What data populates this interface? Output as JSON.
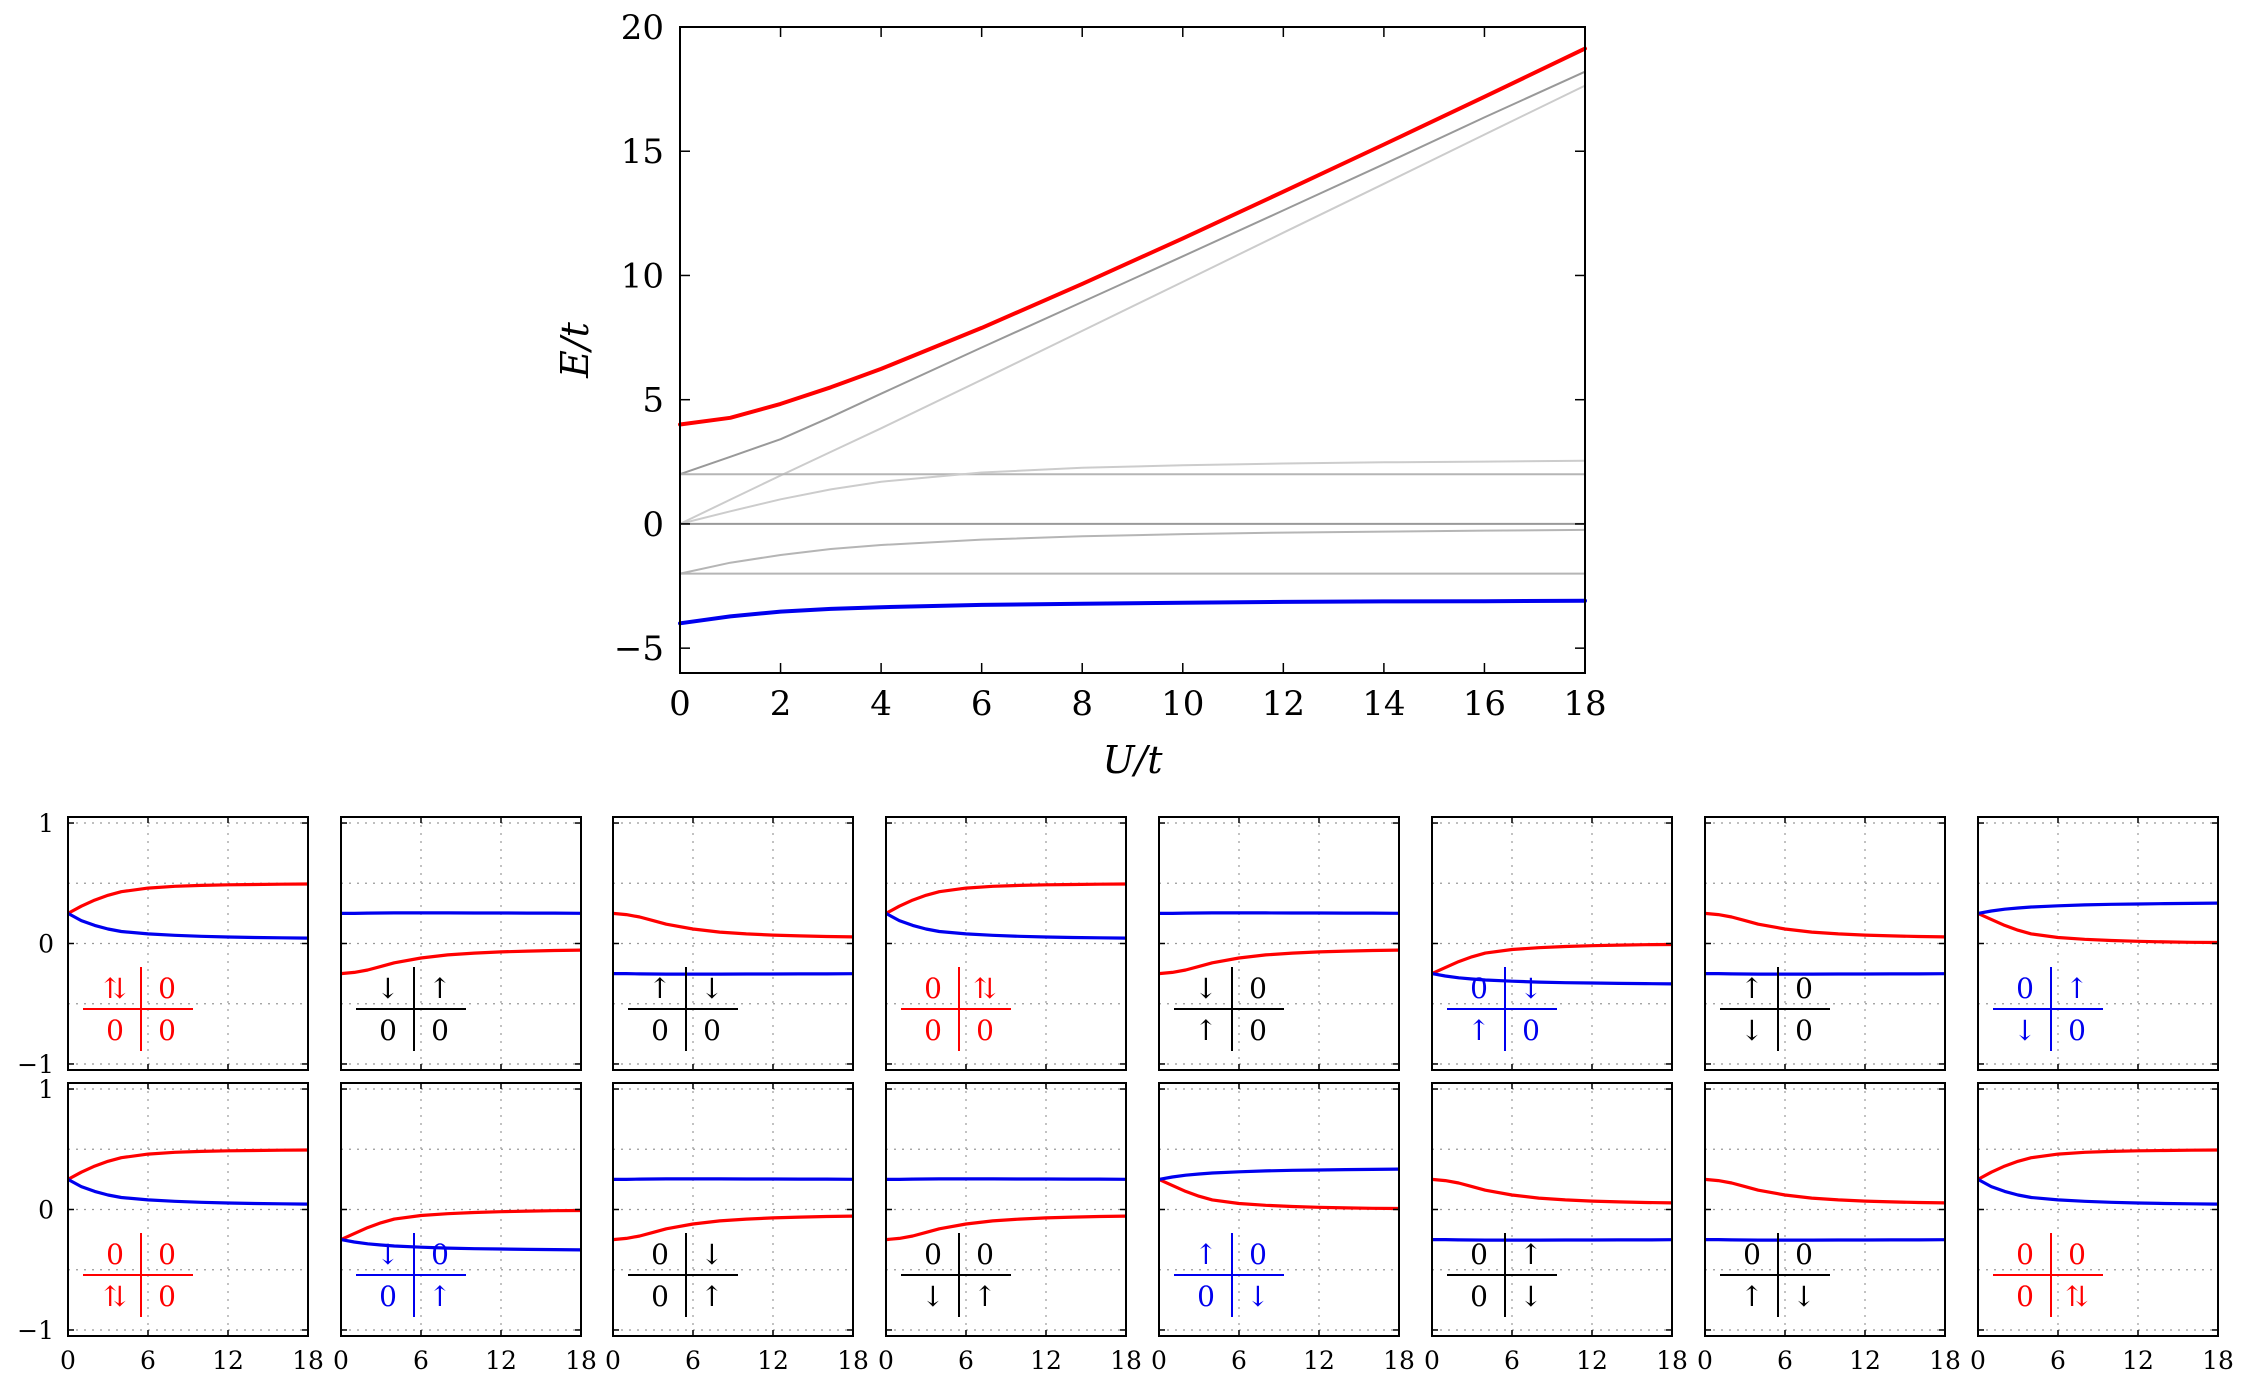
{
  "colors": {
    "red": "#ff0000",
    "blue": "#0000ee",
    "black": "#000000",
    "gray_dark": "#999999",
    "gray_mid": "#b5b5b5",
    "gray_light": "#cccccc"
  },
  "chart_data": [
    {
      "type": "line",
      "xlabel": "U/t",
      "ylabel": "E/t",
      "xlim": [
        0,
        18
      ],
      "ylim": [
        -6,
        20
      ],
      "xticks": [
        0,
        2,
        4,
        6,
        8,
        10,
        12,
        14,
        16,
        18
      ],
      "yticks": [
        -5,
        0,
        5,
        10,
        15,
        20
      ],
      "ytick_labels": [
        "−5",
        "0",
        "5",
        "10",
        "15",
        "20"
      ],
      "grid": false,
      "x": [
        0,
        1,
        2,
        3,
        4,
        6,
        8,
        10,
        12,
        14,
        16,
        18
      ],
      "series": [
        {
          "color": "red",
          "width": 4,
          "values": [
            4.0,
            4.27,
            4.83,
            5.5,
            6.24,
            7.89,
            9.66,
            11.49,
            13.37,
            15.27,
            17.19,
            19.13
          ]
        },
        {
          "color": "gray_dark",
          "width": 2,
          "values": [
            2.0,
            2.7,
            3.41,
            4.3,
            5.24,
            7.1,
            8.93,
            10.77,
            12.62,
            14.48,
            16.36,
            18.2
          ]
        },
        {
          "color": "gray_light",
          "width": 2,
          "values": [
            0.0,
            0.98,
            1.95,
            2.9,
            3.85,
            5.8,
            7.77,
            9.74,
            11.72,
            13.69,
            15.67,
            17.64
          ]
        },
        {
          "color": "gray_mid",
          "width": 2,
          "values": [
            2.0,
            2.0,
            2.0,
            2.0,
            2.0,
            2.0,
            2.0,
            2.0,
            2.0,
            2.0,
            2.0,
            2.0
          ]
        },
        {
          "color": "gray_light",
          "width": 2,
          "values": [
            0.0,
            0.51,
            0.99,
            1.39,
            1.7,
            2.07,
            2.26,
            2.36,
            2.43,
            2.48,
            2.51,
            2.54
          ]
        },
        {
          "color": "gray_dark",
          "width": 2,
          "values": [
            0.0,
            0.0,
            0.0,
            0.0,
            0.0,
            0.0,
            0.0,
            0.0,
            0.0,
            0.0,
            0.0,
            0.0
          ]
        },
        {
          "color": "gray_mid",
          "width": 2,
          "values": [
            -2.0,
            -1.56,
            -1.25,
            -1.01,
            -0.85,
            -0.63,
            -0.5,
            -0.41,
            -0.35,
            -0.31,
            -0.27,
            -0.24
          ]
        },
        {
          "color": "gray_mid",
          "width": 2,
          "values": [
            -2.0,
            -2.0,
            -2.0,
            -2.0,
            -2.0,
            -2.0,
            -2.0,
            -2.0,
            -2.0,
            -2.0,
            -2.0,
            -2.0
          ]
        },
        {
          "color": "blue",
          "width": 4,
          "values": [
            -4.0,
            -3.72,
            -3.53,
            -3.42,
            -3.35,
            -3.26,
            -3.21,
            -3.17,
            -3.14,
            -3.12,
            -3.11,
            -3.09
          ]
        }
      ]
    },
    {
      "type": "line",
      "grid": true,
      "xlim": [
        0,
        18
      ],
      "ylim": [
        -1.05,
        1.05
      ],
      "xticks": [
        0,
        6,
        12,
        18
      ],
      "xtick_labels": [
        "0",
        "6",
        "12",
        "18"
      ],
      "yticks": [
        -1,
        0,
        1
      ],
      "ytick_labels": [
        "−1",
        "0",
        "1"
      ],
      "x": [
        0,
        1,
        2,
        3,
        4,
        6,
        8,
        10,
        12,
        14,
        16,
        18
      ],
      "shapes": {
        "up": [
          0.25,
          0.31,
          0.36,
          0.4,
          0.43,
          0.46,
          0.475,
          0.482,
          0.487,
          0.49,
          0.492,
          0.494
        ],
        "dn": [
          0.25,
          0.19,
          0.15,
          0.12,
          0.1,
          0.08,
          0.068,
          0.06,
          0.054,
          0.05,
          0.047,
          0.045
        ],
        "dec": [
          0.25,
          0.24,
          0.22,
          0.19,
          0.16,
          0.12,
          0.095,
          0.08,
          0.07,
          0.063,
          0.058,
          0.055
        ],
        "inc": [
          -0.25,
          -0.24,
          -0.22,
          -0.19,
          -0.16,
          -0.12,
          -0.095,
          -0.08,
          -0.07,
          -0.063,
          -0.058,
          -0.055
        ],
        "flatPos": [
          0.25,
          0.25,
          0.252,
          0.253,
          0.254,
          0.254,
          0.254,
          0.253,
          0.253,
          0.252,
          0.252,
          0.251
        ],
        "flatNeg": [
          -0.25,
          -0.25,
          -0.252,
          -0.253,
          -0.254,
          -0.254,
          -0.254,
          -0.253,
          -0.253,
          -0.252,
          -0.252,
          -0.251
        ],
        "negUp": [
          -0.25,
          -0.2,
          -0.15,
          -0.11,
          -0.08,
          -0.05,
          -0.035,
          -0.025,
          -0.018,
          -0.013,
          -0.01,
          -0.008
        ],
        "negDn": [
          -0.25,
          -0.27,
          -0.285,
          -0.295,
          -0.303,
          -0.313,
          -0.32,
          -0.325,
          -0.328,
          -0.331,
          -0.333,
          -0.335
        ],
        "posUp": [
          0.25,
          0.27,
          0.285,
          0.295,
          0.303,
          0.313,
          0.32,
          0.325,
          0.328,
          0.331,
          0.333,
          0.335
        ],
        "posDn": [
          0.25,
          0.2,
          0.15,
          0.11,
          0.08,
          0.05,
          0.035,
          0.025,
          0.018,
          0.013,
          0.01,
          0.008
        ]
      },
      "panels": [
        {
          "row": 0,
          "col": 0,
          "red": "up",
          "blue": "dn",
          "label_color": "red",
          "cells": [
            "⇅",
            "0",
            "0",
            "0"
          ]
        },
        {
          "row": 0,
          "col": 1,
          "red": "inc",
          "blue": "flatPos",
          "label_color": "black",
          "cells": [
            "↓",
            "↑",
            "0",
            "0"
          ]
        },
        {
          "row": 0,
          "col": 2,
          "red": "dec",
          "blue": "flatNeg",
          "label_color": "black",
          "cells": [
            "↑",
            "↓",
            "0",
            "0"
          ]
        },
        {
          "row": 0,
          "col": 3,
          "red": "up",
          "blue": "dn",
          "label_color": "red",
          "cells": [
            "0",
            "⇅",
            "0",
            "0"
          ]
        },
        {
          "row": 0,
          "col": 4,
          "red": "inc",
          "blue": "flatPos",
          "label_color": "black",
          "cells": [
            "↓",
            "0",
            "↑",
            "0"
          ]
        },
        {
          "row": 0,
          "col": 5,
          "red": "negUp",
          "blue": "negDn",
          "label_color": "blue",
          "cells": [
            "0",
            "↓",
            "↑",
            "0"
          ]
        },
        {
          "row": 0,
          "col": 6,
          "red": "dec",
          "blue": "flatNeg",
          "label_color": "black",
          "cells": [
            "↑",
            "0",
            "↓",
            "0"
          ]
        },
        {
          "row": 0,
          "col": 7,
          "red": "posDn",
          "blue": "posUp",
          "label_color": "blue",
          "cells": [
            "0",
            "↑",
            "↓",
            "0"
          ]
        },
        {
          "row": 1,
          "col": 0,
          "red": "up",
          "blue": "dn",
          "label_color": "red",
          "cells": [
            "0",
            "0",
            "⇅",
            "0"
          ]
        },
        {
          "row": 1,
          "col": 1,
          "red": "negUp",
          "blue": "negDn",
          "label_color": "blue",
          "cells": [
            "↓",
            "0",
            "0",
            "↑"
          ]
        },
        {
          "row": 1,
          "col": 2,
          "red": "inc",
          "blue": "flatPos",
          "label_color": "black",
          "cells": [
            "0",
            "↓",
            "0",
            "↑"
          ]
        },
        {
          "row": 1,
          "col": 3,
          "red": "inc",
          "blue": "flatPos",
          "label_color": "black",
          "cells": [
            "0",
            "0",
            "↓",
            "↑"
          ]
        },
        {
          "row": 1,
          "col": 4,
          "red": "posDn",
          "blue": "posUp",
          "label_color": "blue",
          "cells": [
            "↑",
            "0",
            "0",
            "↓"
          ]
        },
        {
          "row": 1,
          "col": 5,
          "red": "dec",
          "blue": "flatNeg",
          "label_color": "black",
          "cells": [
            "0",
            "↑",
            "0",
            "↓"
          ]
        },
        {
          "row": 1,
          "col": 6,
          "red": "dec",
          "blue": "flatNeg",
          "label_color": "black",
          "cells": [
            "0",
            "0",
            "↑",
            "↓"
          ]
        },
        {
          "row": 1,
          "col": 7,
          "red": "up",
          "blue": "dn",
          "label_color": "red",
          "cells": [
            "0",
            "0",
            "0",
            "⇅"
          ]
        }
      ]
    }
  ]
}
